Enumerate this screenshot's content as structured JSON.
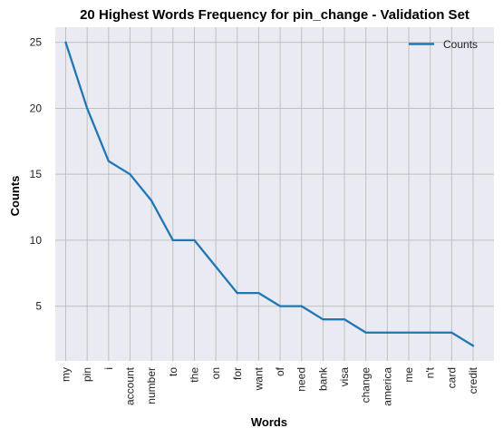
{
  "chart_data": {
    "type": "line",
    "title": "20 Highest Words Frequency for pin_change - Validation Set",
    "xlabel": "Words",
    "ylabel": "Counts",
    "categories": [
      "my",
      "pin",
      "i",
      "account",
      "number",
      "to",
      "the",
      "on",
      "for",
      "want",
      "of",
      "need",
      "bank",
      "visa",
      "change",
      "america",
      "me",
      "n't",
      "card",
      "credit"
    ],
    "series": [
      {
        "name": "Counts",
        "values": [
          25,
          20,
          16,
          15,
          13,
          10,
          10,
          8,
          6,
          6,
          5,
          5,
          4,
          4,
          3,
          3,
          3,
          3,
          3,
          2
        ]
      }
    ],
    "y_ticks": [
      5,
      10,
      15,
      20,
      25
    ],
    "ylim": [
      0.85,
      26.15
    ],
    "grid": true,
    "legend_position": "top-right",
    "colors": {
      "line": "#1f77b4",
      "plot_bg": "#eaeaf2",
      "grid": "#c0c0c0"
    }
  }
}
